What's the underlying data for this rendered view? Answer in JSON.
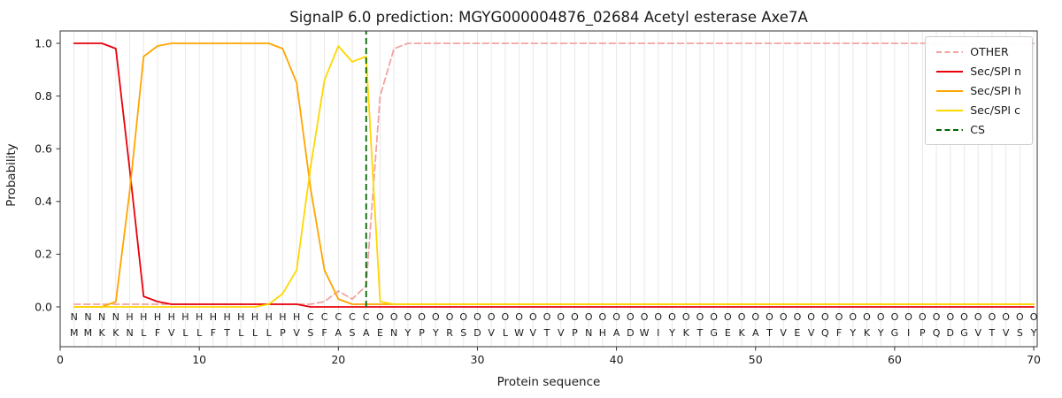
{
  "figure": {
    "background": "#ffffff",
    "axis_color": "#333333"
  },
  "chart_data": {
    "type": "line",
    "title": "SignalP 6.0 prediction: MGYG000004876_02684 Acetyl esterase Axe7A",
    "xlabel": "Protein sequence",
    "ylabel": "Probability",
    "xlim": [
      0,
      70.25
    ],
    "ylim": [
      -0.151,
      1.047
    ],
    "xticks": [
      0,
      10,
      20,
      30,
      40,
      50,
      60,
      70
    ],
    "yticks": [
      0.0,
      0.2,
      0.4,
      0.6,
      0.8,
      1.0
    ],
    "grid": {
      "show": true,
      "axis": "x",
      "color": "#e8e8e8"
    },
    "legend_position": "upper right",
    "x_start": 1,
    "series": [
      {
        "name": "OTHER",
        "color": "#f2a2a2",
        "dashed": true,
        "values": [
          0.01,
          0.01,
          0.01,
          0.01,
          0.01,
          0.01,
          0.01,
          0.01,
          0.01,
          0.01,
          0.01,
          0.01,
          0.01,
          0.01,
          0.01,
          0.01,
          0.01,
          0.01,
          0.02,
          0.06,
          0.03,
          0.08,
          0.8,
          0.98,
          1,
          1,
          1,
          1,
          1,
          1,
          1,
          1,
          1,
          1,
          1,
          1,
          1,
          1,
          1,
          1,
          1,
          1,
          1,
          1,
          1,
          1,
          1,
          1,
          1,
          1,
          1,
          1,
          1,
          1,
          1,
          1,
          1,
          1,
          1,
          1,
          1,
          1,
          1,
          1,
          1,
          1,
          1,
          1,
          1,
          1
        ]
      },
      {
        "name": "Sec/SPI n",
        "color": "#e8000b",
        "dashed": false,
        "values": [
          1,
          1,
          1,
          0.98,
          0.52,
          0.04,
          0.02,
          0.01,
          0.01,
          0.01,
          0.01,
          0.01,
          0.01,
          0.01,
          0.01,
          0.01,
          0.01,
          0,
          0,
          0,
          0,
          0,
          0,
          0,
          0,
          0,
          0,
          0,
          0,
          0,
          0,
          0,
          0,
          0,
          0,
          0,
          0,
          0,
          0,
          0,
          0,
          0,
          0,
          0,
          0,
          0,
          0,
          0,
          0,
          0,
          0,
          0,
          0,
          0,
          0,
          0,
          0,
          0,
          0,
          0,
          0,
          0,
          0,
          0,
          0,
          0,
          0,
          0,
          0,
          0
        ]
      },
      {
        "name": "Sec/SPI h",
        "color": "#ffa500",
        "dashed": false,
        "values": [
          0,
          0,
          0,
          0.02,
          0.44,
          0.95,
          0.99,
          1,
          1,
          1,
          1,
          1,
          1,
          1,
          1,
          0.98,
          0.85,
          0.45,
          0.14,
          0.03,
          0.01,
          0.01,
          0.01,
          0.01,
          0.01,
          0.01,
          0.01,
          0.01,
          0.01,
          0.01,
          0.01,
          0.01,
          0.01,
          0.01,
          0.01,
          0.01,
          0.01,
          0.01,
          0.01,
          0.01,
          0.01,
          0.01,
          0.01,
          0.01,
          0.01,
          0.01,
          0.01,
          0.01,
          0.01,
          0.01,
          0.01,
          0.01,
          0.01,
          0.01,
          0.01,
          0.01,
          0.01,
          0.01,
          0.01,
          0.01,
          0.01,
          0.01,
          0.01,
          0.01,
          0.01,
          0.01,
          0.01,
          0.01,
          0.01,
          0.01
        ]
      },
      {
        "name": "Sec/SPI c",
        "color": "#ffd700",
        "dashed": false,
        "values": [
          0,
          0,
          0,
          0,
          0,
          0,
          0,
          0,
          0,
          0,
          0,
          0,
          0,
          0,
          0.01,
          0.05,
          0.14,
          0.53,
          0.86,
          0.99,
          0.93,
          0.95,
          0.02,
          0.01,
          0.01,
          0.01,
          0.01,
          0.01,
          0.01,
          0.01,
          0.01,
          0.01,
          0.01,
          0.01,
          0.01,
          0.01,
          0.01,
          0.01,
          0.01,
          0.01,
          0.01,
          0.01,
          0.01,
          0.01,
          0.01,
          0.01,
          0.01,
          0.01,
          0.01,
          0.01,
          0.01,
          0.01,
          0.01,
          0.01,
          0.01,
          0.01,
          0.01,
          0.01,
          0.01,
          0.01,
          0.01,
          0.01,
          0.01,
          0.01,
          0.01,
          0.01,
          0.01,
          0.01,
          0.01,
          0.01
        ]
      }
    ],
    "cs_marker": {
      "name": "CS",
      "position": 22,
      "color": "#006400",
      "dashed": true
    },
    "sequence_track": {
      "residues": "MMKKNLFVLLFTLLLPVSFASAENYPYRSDVLWVTVPNHADWIYKTGEKATVEVQFYKYGIPQDGVTVSY",
      "region_labels": "NNNNHHHHHHHHHHHHHCCCCCOOOOOOOOOOOOOOOOOOOOOOOOOOOOOOOOOOOOOOOOOOOOOOOO",
      "region_colors": {
        "N": "#e8000b",
        "H": "#ffa500",
        "C": "#e6b400",
        "O": "#909090"
      },
      "residue_color": "#1a1a1a"
    }
  }
}
